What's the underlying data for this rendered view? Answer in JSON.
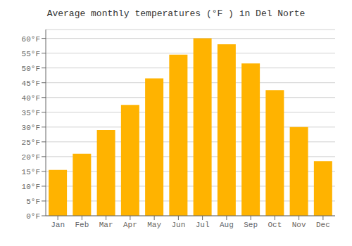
{
  "chart_data": {
    "type": "bar",
    "title": "Average monthly temperatures (°F ) in Del Norte",
    "categories": [
      "Jan",
      "Feb",
      "Mar",
      "Apr",
      "May",
      "Jun",
      "Jul",
      "Aug",
      "Sep",
      "Oct",
      "Nov",
      "Dec"
    ],
    "values": [
      15.5,
      21.0,
      29.0,
      37.5,
      46.5,
      54.5,
      60.0,
      58.0,
      51.5,
      42.5,
      30.0,
      18.5
    ],
    "color": "#FFB300",
    "ylim": [
      0,
      63
    ],
    "yticks": [
      {
        "value": 0,
        "label": "0°F"
      },
      {
        "value": 5,
        "label": "5°F"
      },
      {
        "value": 10,
        "label": "10°F"
      },
      {
        "value": 15,
        "label": "15°F"
      },
      {
        "value": 20,
        "label": "20°F"
      },
      {
        "value": 25,
        "label": "25°F"
      },
      {
        "value": 30,
        "label": "30°F"
      },
      {
        "value": 35,
        "label": "35°F"
      },
      {
        "value": 40,
        "label": "40°F"
      },
      {
        "value": 45,
        "label": "45°F"
      },
      {
        "value": 50,
        "label": "50°F"
      },
      {
        "value": 55,
        "label": "55°F"
      },
      {
        "value": 60,
        "label": "60°F"
      }
    ],
    "grid": true
  }
}
